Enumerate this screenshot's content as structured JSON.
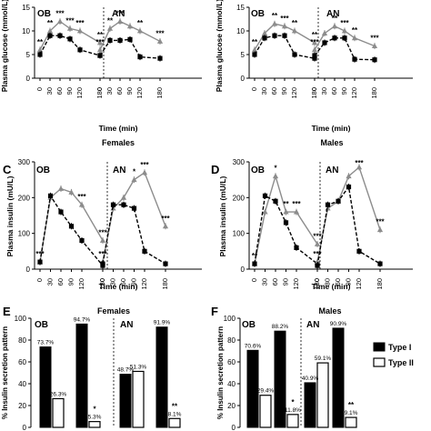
{
  "panels": {
    "A": {
      "letter": "",
      "title": "",
      "ylabel": "Plasma glucose (mmol/L)",
      "xlabel": "Time (min)",
      "yticks": [
        "0",
        "5",
        "10",
        "15"
      ],
      "xticks": [
        "0",
        "30",
        "60",
        "90",
        "120",
        "180"
      ],
      "groups": [
        "OB",
        "AN"
      ]
    },
    "B": {
      "letter": "",
      "title": "",
      "ylabel": "Plasma glucose (mmol/L)",
      "xlabel": "Time (min)",
      "yticks": [
        "0",
        "5",
        "10",
        "15"
      ],
      "xticks": [
        "0",
        "30",
        "60",
        "90",
        "120",
        "180"
      ],
      "groups": [
        "OB",
        "AN"
      ]
    },
    "C": {
      "letter": "C",
      "title": "Females",
      "ylabel": "Plasma insulin (mU/L)",
      "xlabel": "Time (min)",
      "yticks": [
        "0",
        "100",
        "200",
        "300"
      ],
      "xticks": [
        "0",
        "30",
        "60",
        "90",
        "120",
        "180"
      ],
      "groups": [
        "OB",
        "AN"
      ]
    },
    "D": {
      "letter": "D",
      "title": "Males",
      "ylabel": "Plasma insulin (mU/L)",
      "xlabel": "Time (min)",
      "yticks": [
        "0",
        "100",
        "200",
        "300"
      ],
      "xticks": [
        "0",
        "30",
        "60",
        "90",
        "120",
        "180"
      ],
      "groups": [
        "OB",
        "AN"
      ]
    },
    "E": {
      "letter": "E",
      "title": "Females",
      "ylabel": "% Insulin secretion pattern",
      "yticks": [
        "0",
        "20",
        "40",
        "60",
        "80",
        "100"
      ],
      "groups": [
        "OB",
        "AN"
      ]
    },
    "F": {
      "letter": "F",
      "title": "Males",
      "ylabel": "% Insulin secretion pattern",
      "yticks": [
        "0",
        "20",
        "40",
        "60",
        "80",
        "100"
      ],
      "groups": [
        "OB",
        "AN"
      ]
    }
  },
  "legend": {
    "type1": "Type I",
    "type2": "Type II"
  },
  "colors": {
    "fasting": "#000000",
    "control": "#8c8c8c",
    "type1": "#000000",
    "type2": "#ffffff"
  },
  "chart_data": [
    {
      "panel": "A",
      "type": "line",
      "x": [
        0,
        30,
        60,
        90,
        120,
        180
      ],
      "ylim": [
        0,
        15
      ],
      "groups": [
        {
          "name": "OB",
          "series": [
            {
              "style": "solid",
              "values": [
                6.0,
                10.0,
                12.0,
                10.5,
                10.0,
                7.5
              ]
            },
            {
              "style": "dashed",
              "values": [
                5.0,
                9.0,
                9.0,
                8.3,
                6.0,
                4.8
              ]
            }
          ],
          "annotations": [
            {
              "x": 0,
              "text": "**"
            },
            {
              "x": 30,
              "text": "**"
            },
            {
              "x": 60,
              "text": "***"
            },
            {
              "x": 90,
              "text": "***"
            },
            {
              "x": 120,
              "text": "***"
            },
            {
              "x": 180,
              "text": "**"
            }
          ]
        },
        {
          "name": "AN",
          "series": [
            {
              "style": "solid",
              "values": [
                6.0,
                10.5,
                12.0,
                11.0,
                10.0,
                7.8
              ]
            },
            {
              "style": "dashed",
              "values": [
                4.8,
                8.0,
                8.0,
                8.2,
                4.5,
                4.2
              ]
            }
          ],
          "annotations": [
            {
              "x": 0,
              "text": "***"
            },
            {
              "x": 30,
              "text": "**"
            },
            {
              "x": 60,
              "text": "***"
            },
            {
              "x": 120,
              "text": "**"
            },
            {
              "x": 180,
              "text": "***"
            }
          ]
        }
      ]
    },
    {
      "panel": "B",
      "type": "line",
      "x": [
        0,
        30,
        60,
        90,
        120,
        180
      ],
      "ylim": [
        0,
        15
      ],
      "groups": [
        {
          "name": "OB",
          "series": [
            {
              "style": "solid",
              "values": [
                6.0,
                9.5,
                11.5,
                11.0,
                10.0,
                7.5
              ]
            },
            {
              "style": "dashed",
              "values": [
                5.0,
                8.5,
                9.0,
                9.0,
                5.0,
                4.2
              ]
            }
          ],
          "annotations": [
            {
              "x": 0,
              "text": "**"
            },
            {
              "x": 60,
              "text": "**"
            },
            {
              "x": 90,
              "text": "***"
            },
            {
              "x": 120,
              "text": "**"
            },
            {
              "x": 180,
              "text": "**"
            }
          ]
        },
        {
          "name": "AN",
          "series": [
            {
              "style": "solid",
              "values": [
                6.0,
                9.5,
                11.0,
                10.0,
                8.5,
                6.8
              ]
            },
            {
              "style": "dashed",
              "values": [
                4.8,
                7.5,
                8.5,
                8.5,
                4.0,
                3.9
              ]
            }
          ],
          "annotations": [
            {
              "x": 0,
              "text": "***"
            },
            {
              "x": 60,
              "text": "**"
            },
            {
              "x": 90,
              "text": "***"
            },
            {
              "x": 120,
              "text": "**"
            },
            {
              "x": 180,
              "text": "***"
            }
          ]
        }
      ]
    },
    {
      "panel": "C",
      "type": "line",
      "x": [
        0,
        30,
        60,
        90,
        120,
        180
      ],
      "ylim": [
        0,
        300
      ],
      "groups": [
        {
          "name": "OB",
          "series": [
            {
              "style": "solid",
              "values": [
                20,
                200,
                225,
                215,
                180,
                80
              ]
            },
            {
              "style": "dashed",
              "values": [
                20,
                205,
                160,
                120,
                80,
                10
              ]
            }
          ],
          "annotations": [
            {
              "x": 0,
              "text": "***"
            },
            {
              "x": 120,
              "text": "***"
            },
            {
              "x": 180,
              "text": "***"
            }
          ]
        },
        {
          "name": "AN",
          "series": [
            {
              "style": "solid",
              "values": [
                20,
                170,
                200,
                250,
                270,
                120
              ]
            },
            {
              "style": "dashed",
              "values": [
                15,
                180,
                180,
                170,
                50,
                15
              ]
            }
          ],
          "annotations": [
            {
              "x": 0,
              "text": "***"
            },
            {
              "x": 90,
              "text": "*"
            },
            {
              "x": 120,
              "text": "***"
            },
            {
              "x": 180,
              "text": "***"
            }
          ]
        }
      ]
    },
    {
      "panel": "D",
      "type": "line",
      "x": [
        0,
        30,
        60,
        90,
        120,
        180
      ],
      "ylim": [
        0,
        300
      ],
      "groups": [
        {
          "name": "OB",
          "series": [
            {
              "style": "solid",
              "values": [
                15,
                160,
                260,
                160,
                160,
                70
              ]
            },
            {
              "style": "dashed",
              "values": [
                15,
                205,
                190,
                130,
                60,
                15
              ]
            }
          ],
          "annotations": [
            {
              "x": 0,
              "text": "**"
            },
            {
              "x": 60,
              "text": "*"
            },
            {
              "x": 90,
              "text": "**"
            },
            {
              "x": 120,
              "text": "***"
            },
            {
              "x": 180,
              "text": "***"
            }
          ]
        },
        {
          "name": "AN",
          "series": [
            {
              "style": "solid",
              "values": [
                20,
                170,
                190,
                260,
                285,
                110
              ]
            },
            {
              "style": "dashed",
              "values": [
                10,
                180,
                190,
                230,
                50,
                15
              ]
            }
          ],
          "annotations": [
            {
              "x": 0,
              "text": "***"
            },
            {
              "x": 120,
              "text": "***"
            },
            {
              "x": 180,
              "text": "***"
            }
          ]
        }
      ]
    },
    {
      "panel": "E",
      "type": "bar",
      "ylim": [
        0,
        100
      ],
      "groups": [
        {
          "name": "OB",
          "pairs": [
            {
              "type1": 73.7,
              "type2": 26.3,
              "label1": "73.7%",
              "label2": "26.3%",
              "sig": ""
            },
            {
              "type1": 94.7,
              "type2": 5.3,
              "label1": "94.7%",
              "label2": "5.3%",
              "sig": "*"
            }
          ]
        },
        {
          "name": "AN",
          "pairs": [
            {
              "type1": 48.7,
              "type2": 51.3,
              "label1": "48.7%",
              "label2": "51.3%",
              "sig": ""
            },
            {
              "type1": 91.9,
              "type2": 8.1,
              "label1": "91.9%",
              "label2": "8.1%",
              "sig": "**"
            }
          ]
        }
      ]
    },
    {
      "panel": "F",
      "type": "bar",
      "ylim": [
        0,
        100
      ],
      "groups": [
        {
          "name": "OB",
          "pairs": [
            {
              "type1": 70.6,
              "type2": 29.4,
              "label1": "70.6%",
              "label2": "29.4%",
              "sig": ""
            },
            {
              "type1": 88.2,
              "type2": 11.8,
              "label1": "88.2%",
              "label2": "11.8%",
              "sig": "*"
            }
          ]
        },
        {
          "name": "AN",
          "pairs": [
            {
              "type1": 40.9,
              "type2": 59.1,
              "label1": "40.9%",
              "label2": "59.1%",
              "sig": ""
            },
            {
              "type1": 90.9,
              "type2": 9.1,
              "label1": "90.9%",
              "label2": "9.1%",
              "sig": "**"
            }
          ]
        }
      ]
    }
  ]
}
